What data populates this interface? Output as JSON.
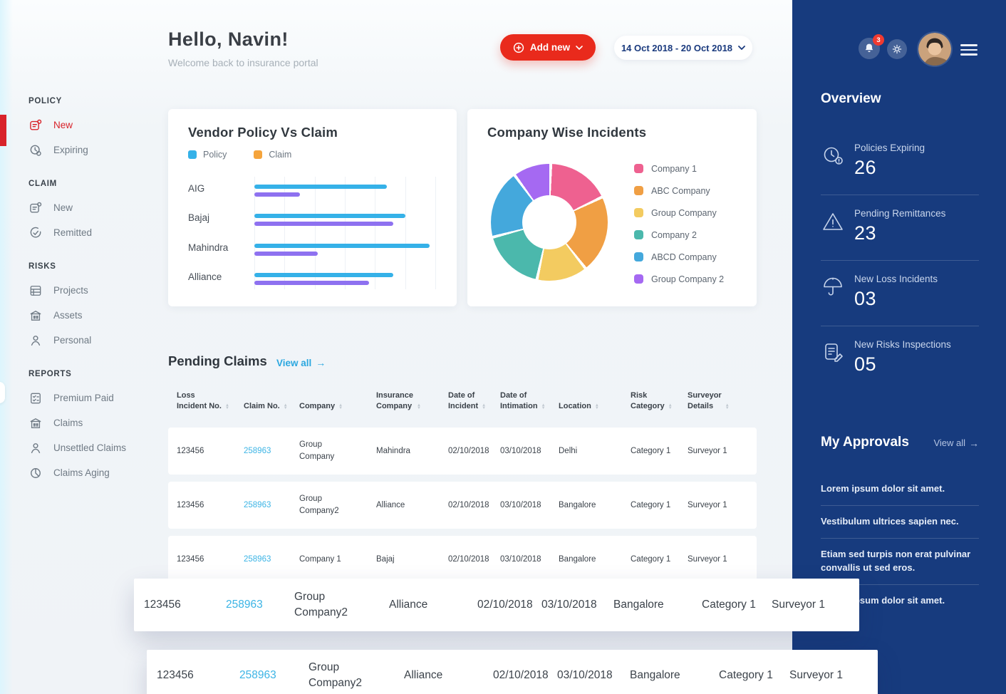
{
  "topbar": {
    "greeting": "Hello, Navin!",
    "subtitle": "Welcome back to insurance portal",
    "add_new_label": "Add new",
    "date_range": "14 Oct 2018 - 20 Oct 2018",
    "notification_count": "3"
  },
  "nav": {
    "sections": [
      {
        "title": "POLICY",
        "items": [
          {
            "label": "New",
            "active": true
          },
          {
            "label": "Expiring"
          }
        ]
      },
      {
        "title": "CLAIM",
        "items": [
          {
            "label": "New"
          },
          {
            "label": "Remitted"
          }
        ]
      },
      {
        "title": "RISKS",
        "items": [
          {
            "label": "Projects"
          },
          {
            "label": "Assets"
          },
          {
            "label": "Personal"
          }
        ]
      },
      {
        "title": "REPORTS",
        "items": [
          {
            "label": "Premium Paid"
          },
          {
            "label": "Claims"
          },
          {
            "label": "Unsettled Claims"
          },
          {
            "label": "Claims Aging"
          }
        ]
      }
    ]
  },
  "chart_data": [
    {
      "type": "bar",
      "orientation": "horizontal",
      "title": "Vendor Policy Vs Claim",
      "categories": [
        "AIG",
        "Bajaj",
        "Mahindra",
        "Alliance"
      ],
      "series": [
        {
          "name": "Policy",
          "color": "#35b1e8",
          "values": [
            44,
            50,
            58,
            46
          ]
        },
        {
          "name": "Claim",
          "color": "#8e71f0",
          "legend_color": "#f5a43c",
          "values": [
            15,
            46,
            21,
            38
          ]
        }
      ],
      "xlim": [
        0,
        60
      ],
      "grid": true,
      "legend_position": "top"
    },
    {
      "type": "pie",
      "donut": true,
      "title": "Company Wise Incidents",
      "labels": [
        "Company 1",
        "ABC Company",
        "Group Company",
        "Company 2",
        "ABCD Company",
        "Group Company 2"
      ],
      "values": [
        17.5,
        21.5,
        14,
        17.5,
        19,
        10.5
      ],
      "colors": [
        "#ee6190",
        "#f09f44",
        "#f3cb60",
        "#4bb8ac",
        "#44a8dc",
        "#a569f2"
      ],
      "legend_position": "right"
    }
  ],
  "pending_claims": {
    "title": "Pending Claims",
    "view_all": "View all",
    "columns": [
      "Loss\nIncident No.",
      "Claim No.",
      "Company",
      "Insurance\nCompany",
      "Date of\nIncident",
      "Date of\nIntimation",
      "Location",
      "Risk\nCategory",
      "Surveyor\nDetails"
    ],
    "rows": [
      [
        "123456",
        "258963",
        "Group Company",
        "Mahindra",
        "02/10/2018",
        "03/10/2018",
        "Delhi",
        "Category 1",
        "Surveyor 1"
      ],
      [
        "123456",
        "258963",
        "Group Company2",
        "Alliance",
        "02/10/2018",
        "03/10/2018",
        "Bangalore",
        "Category 1",
        "Surveyor 1"
      ],
      [
        "123456",
        "258963",
        "Company 1",
        "Bajaj",
        "02/10/2018",
        "03/10/2018",
        "Bangalore",
        "Category 1",
        "Surveyor 1"
      ]
    ],
    "overlay_rows": [
      [
        "123456",
        "258963",
        "Group Company2",
        "Alliance",
        "02/10/2018",
        "03/10/2018",
        "Bangalore",
        "Category 1",
        "Surveyor 1"
      ],
      [
        "123456",
        "258963",
        "Group Company2",
        "Alliance",
        "02/10/2018",
        "03/10/2018",
        "Bangalore",
        "Category 1",
        "Surveyor 1"
      ]
    ]
  },
  "overview": {
    "title": "Overview",
    "stats": [
      {
        "icon": "clock-alert-icon",
        "label": "Policies Expiring",
        "value": "26"
      },
      {
        "icon": "warning-triangle-icon",
        "label": "Pending Remittances",
        "value": "23"
      },
      {
        "icon": "umbrella-icon",
        "label": "New Loss Incidents",
        "value": "03"
      },
      {
        "icon": "document-pencil-icon",
        "label": "New Risks Inspections",
        "value": "05"
      }
    ]
  },
  "approvals": {
    "title": "My Approvals",
    "view_all": "View all",
    "items": [
      "Lorem ipsum dolor sit amet.",
      "Vestibulum ultrices sapien nec.",
      "Etiam sed turpis non erat pulvinar convallis ut sed eros.",
      "Lorem ipsum dolor sit amet."
    ]
  }
}
